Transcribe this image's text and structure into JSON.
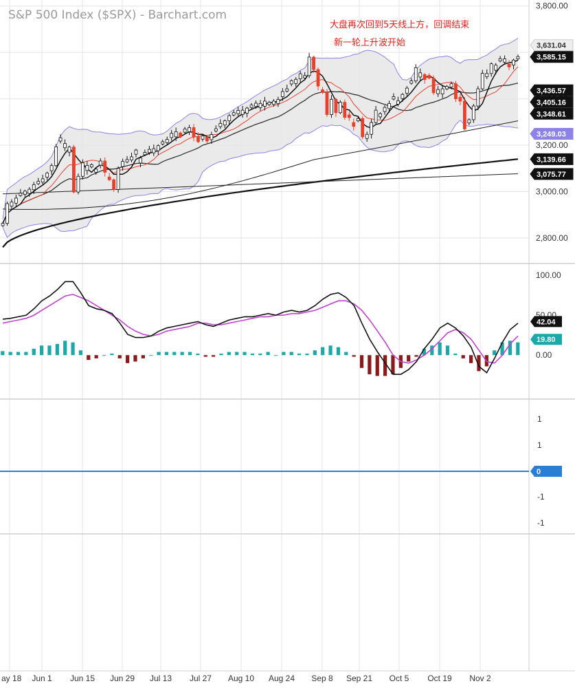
{
  "title": "S&P 500 Index ($SPX) - Barchart.com",
  "annotation": [
    "大盘再次回到5天线上方，回调结束",
    "新一轮上升波开始"
  ],
  "colors": {
    "up": "#ffffff",
    "down": "#e8402a",
    "black": "#111111",
    "bollinger_fill": "#e6e6e6",
    "bollinger_line": "#8c82e8",
    "ema_red": "#e8402a",
    "k_line": "#111111",
    "d_line": "#c040d0",
    "hist_pos": "#1aa8a8",
    "hist_neg": "#8b1a1a",
    "zero_line": "#2a7fd4",
    "grid": "#e4e4e4"
  },
  "chart_data": [
    {
      "type": "candlestick",
      "name": "price",
      "y_ticks": [
        "3,800.00",
        "3,600.00",
        "3,400.00",
        "3,200.00",
        "3,000.00",
        "2,800.00"
      ],
      "ylim": [
        2690,
        3820
      ],
      "x_labels": [
        "ay 18",
        "Jun 1",
        "Jun 15",
        "Jun 29",
        "Jul 13",
        "Jul 27",
        "Aug 10",
        "Aug 24",
        "Sep 8",
        "Sep 21",
        "Oct 5",
        "Oct 19",
        "Nov 2"
      ],
      "tags": [
        {
          "label": "3,631.04",
          "value": 3631.04,
          "bg": "#eeeeee",
          "fg": "#333333"
        },
        {
          "label": "3,585.15",
          "value": 3585.15,
          "bg": "#111111",
          "fg": "#ffffff"
        },
        {
          "label": "3,436.57",
          "value": 3436.57,
          "bg": "#111111",
          "fg": "#ffffff"
        },
        {
          "label": "3,405.16",
          "value": 3405.16,
          "bg": "#111111",
          "fg": "#ffffff"
        },
        {
          "label": "3,348.61",
          "value": 3348.61,
          "bg": "#111111",
          "fg": "#ffffff"
        },
        {
          "label": "3,249.03",
          "value": 3249.03,
          "bg": "#8c82e8",
          "fg": "#ffffff"
        },
        {
          "label": "3,139.66",
          "value": 3139.66,
          "bg": "#111111",
          "fg": "#ffffff"
        },
        {
          "label": "3,075.77",
          "value": 3075.77,
          "bg": "#111111",
          "fg": "#ffffff"
        }
      ],
      "closes": [
        2863,
        2948,
        2955,
        2972,
        2993,
        3002,
        3010,
        3030,
        3044,
        3055,
        3080,
        3112,
        3193,
        3232,
        3207,
        3192,
        2998,
        3066,
        3124,
        3113,
        3116,
        3097,
        3132,
        3083,
        3051,
        3009,
        3100,
        3130,
        3138,
        3150,
        3179,
        3145,
        3169,
        3182,
        3185,
        3198,
        3215,
        3225,
        3251,
        3258,
        3236,
        3270,
        3276,
        3235,
        3215,
        3240,
        3218,
        3246,
        3271,
        3294,
        3305,
        3327,
        3340,
        3350,
        3351,
        3360,
        3373,
        3381,
        3380,
        3390,
        3385,
        3390,
        3397,
        3431,
        3443,
        3478,
        3484,
        3508,
        3500,
        3580,
        3526,
        3455,
        3427,
        3332,
        3398,
        3340,
        3385,
        3320,
        3319,
        3281,
        3315,
        3236,
        3247,
        3298,
        3351,
        3336,
        3363,
        3380,
        3409,
        3391,
        3419,
        3446,
        3477,
        3534,
        3512,
        3483,
        3489,
        3426,
        3440,
        3443,
        3453,
        3465,
        3400,
        3390,
        3270,
        3310,
        3369,
        3443,
        3510,
        3509,
        3551,
        3545,
        3573,
        3572,
        3537,
        3567,
        3582
      ],
      "down_days": [
        16,
        23,
        24,
        25,
        40,
        43,
        44,
        46,
        70,
        71,
        72,
        73,
        75,
        77,
        78,
        79,
        81,
        95,
        96,
        97,
        102,
        103,
        104,
        114
      ]
    },
    {
      "type": "line",
      "name": "stochastic",
      "y_ticks": [
        "100.00",
        "50.00",
        "0.00"
      ],
      "tags": [
        {
          "label": "42.04",
          "value": 42.04,
          "bg": "#111111",
          "fg": "#ffffff"
        },
        {
          "label": "19.80",
          "value": 19.8,
          "bg": "#1aa8a8",
          "fg": "#ffffff"
        }
      ],
      "series": [
        {
          "name": "k",
          "values": [
            45,
            46,
            48,
            50,
            58,
            68,
            74,
            82,
            92,
            92,
            78,
            62,
            58,
            56,
            52,
            40,
            26,
            22,
            22,
            24,
            30,
            34,
            36,
            38,
            40,
            42,
            38,
            36,
            40,
            44,
            46,
            48,
            48,
            50,
            52,
            50,
            54,
            56,
            54,
            56,
            62,
            70,
            76,
            78,
            72,
            62,
            40,
            20,
            4,
            -10,
            -24,
            -24,
            -18,
            -8,
            8,
            20,
            34,
            40,
            34,
            24,
            10,
            -14,
            -22,
            -4,
            16,
            32,
            40
          ]
        },
        {
          "name": "d",
          "values": [
            40,
            42,
            44,
            46,
            50,
            56,
            62,
            68,
            74,
            76,
            72,
            68,
            62,
            56,
            50,
            44,
            36,
            30,
            26,
            24,
            26,
            30,
            32,
            34,
            36,
            40,
            40,
            38,
            38,
            40,
            42,
            44,
            46,
            48,
            48,
            50,
            50,
            52,
            52,
            54,
            56,
            60,
            64,
            68,
            68,
            64,
            56,
            44,
            30,
            16,
            0,
            -8,
            -10,
            -6,
            0,
            8,
            18,
            28,
            32,
            28,
            20,
            6,
            -8,
            -10,
            0,
            14,
            24
          ]
        },
        {
          "name": "histogram",
          "values": [
            5,
            4,
            4,
            4,
            8,
            12,
            12,
            14,
            18,
            16,
            6,
            -6,
            -4,
            0,
            2,
            -4,
            -10,
            -8,
            -4,
            0,
            4,
            4,
            4,
            4,
            4,
            2,
            -2,
            -2,
            2,
            4,
            4,
            4,
            2,
            2,
            4,
            0,
            4,
            4,
            2,
            2,
            6,
            10,
            12,
            10,
            4,
            -2,
            -16,
            -24,
            -26,
            -26,
            -24,
            -16,
            -8,
            -2,
            8,
            12,
            16,
            12,
            2,
            -4,
            -10,
            -20,
            -14,
            6,
            16,
            18,
            16
          ]
        }
      ]
    },
    {
      "type": "line",
      "name": "lower-indicator",
      "y_ticks": [
        "1",
        "1",
        "0",
        "-1",
        "-1"
      ],
      "tags": [
        {
          "label": "0",
          "value": 0,
          "bg": "#2a7fd4",
          "fg": "#ffffff"
        }
      ]
    }
  ]
}
